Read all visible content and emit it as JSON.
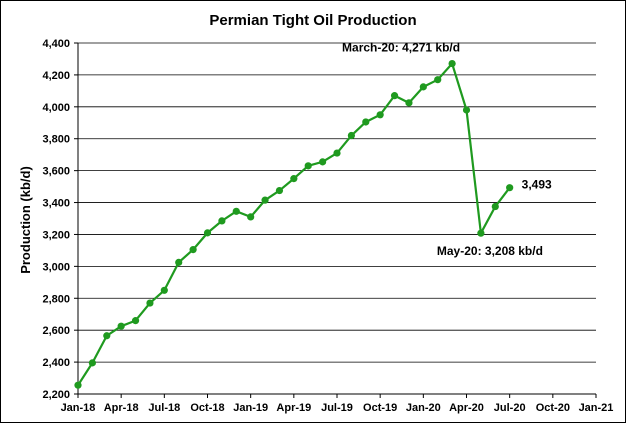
{
  "chart_data": {
    "type": "line",
    "title": "Permian Tight Oil Production",
    "xlabel": "",
    "ylabel": "Production (kb/d)",
    "ylim": [
      2200,
      4400
    ],
    "yticks": [
      "2,200",
      "2,400",
      "2,600",
      "2,800",
      "3,000",
      "3,200",
      "3,400",
      "3,600",
      "3,800",
      "4,000",
      "4,200",
      "4,400"
    ],
    "xticks": [
      "Jan-18",
      "Apr-18",
      "Jul-18",
      "Oct-18",
      "Jan-19",
      "Apr-19",
      "Jul-19",
      "Oct-19",
      "Jan-20",
      "Apr-20",
      "Jul-20",
      "Oct-20",
      "Jan-21"
    ],
    "grid": "horizontal",
    "line_color": "#1f9a1f",
    "series": [
      {
        "x": [
          "Jan-18",
          "Feb-18",
          "Mar-18",
          "Apr-18",
          "May-18",
          "Jun-18",
          "Jul-18",
          "Aug-18",
          "Sep-18",
          "Oct-18",
          "Nov-18",
          "Dec-18",
          "Jan-19",
          "Feb-19",
          "Mar-19",
          "Apr-19",
          "May-19",
          "Jun-19",
          "Jul-19",
          "Aug-19",
          "Sep-19",
          "Oct-19",
          "Nov-19",
          "Dec-19",
          "Jan-20",
          "Feb-20",
          "Mar-20",
          "Apr-20",
          "May-20",
          "Jun-20",
          "Jul-20"
        ],
        "values": [
          2255,
          2395,
          2565,
          2625,
          2660,
          2770,
          2850,
          3025,
          3105,
          3210,
          3285,
          3345,
          3310,
          3415,
          3475,
          3550,
          3630,
          3655,
          3710,
          3820,
          3905,
          3950,
          4070,
          4025,
          4125,
          4170,
          4271,
          3980,
          3208,
          3375,
          3493
        ]
      }
    ],
    "annotations": [
      {
        "text": "March-20: 4,271 kb/d",
        "x": "Mar-20",
        "y": 4271
      },
      {
        "text": "May-20: 3,208 kb/d",
        "x": "May-20",
        "y": 3208
      },
      {
        "text": "3,493",
        "x": "Jul-20",
        "y": 3493
      }
    ]
  }
}
